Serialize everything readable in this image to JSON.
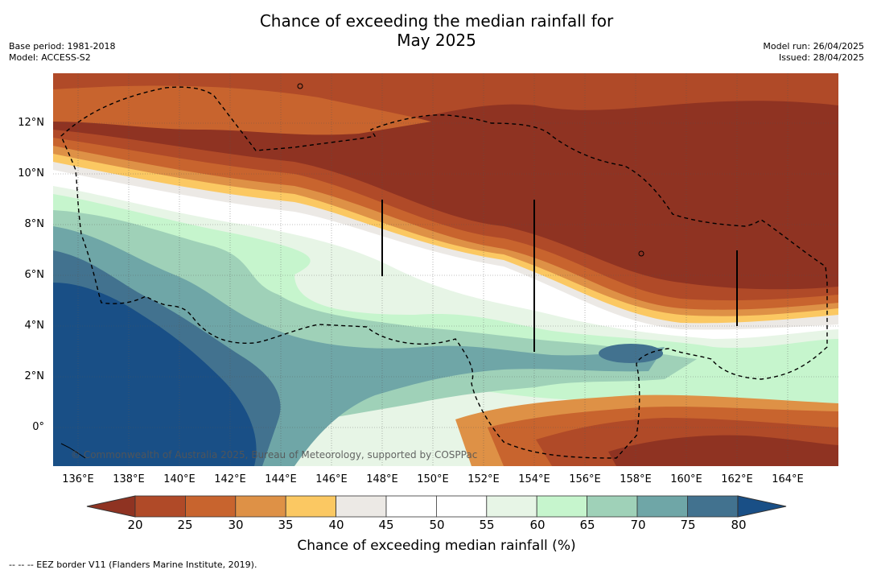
{
  "header": {
    "title_line1": "Chance of exceeding the median rainfall for",
    "title_line2": "May 2025",
    "base_period": "Base period: 1981-2018",
    "model": "Model: ACCESS-S2",
    "model_run": "Model run: 26/04/2025",
    "issued": "Issued: 28/04/2025"
  },
  "map": {
    "lat_labels": [
      "12°N",
      "10°N",
      "8°N",
      "6°N",
      "4°N",
      "2°N",
      "0°"
    ],
    "lon_labels": [
      "136°E",
      "138°E",
      "140°E",
      "142°E",
      "144°E",
      "146°E",
      "148°E",
      "150°E",
      "152°E",
      "154°E",
      "156°E",
      "158°E",
      "160°E",
      "162°E",
      "164°E"
    ],
    "copyright": "© Commonwealth of Australia 2025, Bureau of Meteorology, supported by COSPPac"
  },
  "colorbar": {
    "ticks": [
      "20",
      "25",
      "30",
      "35",
      "40",
      "45",
      "50",
      "55",
      "60",
      "65",
      "70",
      "75",
      "80"
    ],
    "colors": [
      "#8f3322",
      "#b04a28",
      "#c8642e",
      "#de9146",
      "#fbc862",
      "#ece9e5",
      "#ffffff",
      "#ffffff",
      "#e7f5e6",
      "#c6f5cd",
      "#9fd1b8",
      "#6fa6a7",
      "#42728f",
      "#194f86"
    ],
    "title": "Chance of exceeding median rainfall (%)"
  },
  "footnote": "--  --  -- EEZ border V11 (Flanders Marine Institute, 2019)."
}
